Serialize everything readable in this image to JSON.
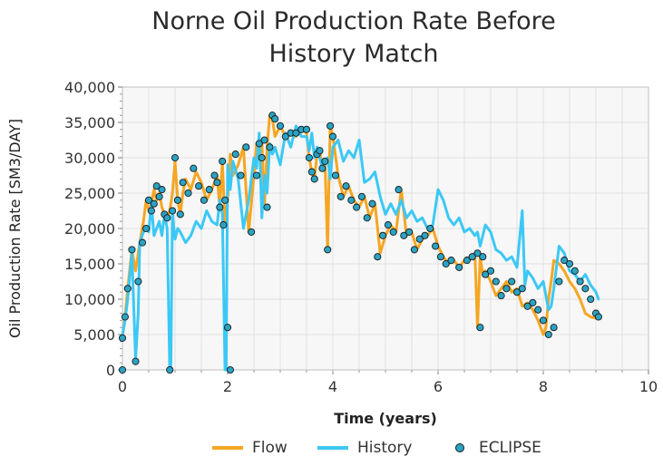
{
  "chart_data": {
    "type": "line",
    "title": [
      "Norne Oil Production Rate Before",
      "History Match"
    ],
    "xlabel": "Time (years)",
    "ylabel": "Oil Production Rate [SM3/DAY]",
    "xlim": [
      0,
      10
    ],
    "ylim": [
      0,
      40000
    ],
    "xticks": [
      "0",
      "2",
      "4",
      "6",
      "8",
      "10"
    ],
    "yticks": [
      "0",
      "5,000",
      "10,000",
      "15,000",
      "20,000",
      "25,000",
      "30,000",
      "35,000",
      "40,000"
    ],
    "grid": true,
    "legend_position": "bottom",
    "colors": {
      "Flow": "#f5a623",
      "History": "#3cc8f5",
      "ECLIPSE": "#2aa3c4",
      "grid": "#d9d9d9"
    },
    "series": [
      {
        "name": "Flow",
        "type": "line",
        "x": [
          0,
          0.05,
          0.1,
          0.18,
          0.25,
          0.33,
          0.4,
          0.45,
          0.5,
          0.55,
          0.6,
          0.65,
          0.7,
          0.75,
          0.8,
          0.85,
          0.9,
          0.95,
          1.0,
          1.05,
          1.1,
          1.15,
          1.2,
          1.3,
          1.4,
          1.5,
          1.6,
          1.7,
          1.8,
          1.85,
          1.9,
          1.95,
          2.0,
          2.05,
          2.1,
          2.2,
          2.3,
          2.4,
          2.5,
          2.55,
          2.6,
          2.65,
          2.7,
          2.75,
          2.8,
          2.85,
          2.9,
          3.0,
          3.1,
          3.2,
          3.3,
          3.4,
          3.5,
          3.55,
          3.6,
          3.65,
          3.7,
          3.75,
          3.8,
          3.85,
          3.9,
          3.95,
          4.0,
          4.1,
          4.2,
          4.3,
          4.4,
          4.5,
          4.6,
          4.7,
          4.8,
          4.9,
          5.0,
          5.1,
          5.2,
          5.3,
          5.4,
          5.5,
          5.6,
          5.7,
          5.8,
          5.9,
          6.0,
          6.1,
          6.2,
          6.3,
          6.4,
          6.5,
          6.6,
          6.7,
          6.75,
          6.8,
          6.85,
          6.9,
          7.0,
          7.1,
          7.2,
          7.3,
          7.4,
          7.5,
          7.6,
          7.7,
          7.8,
          7.9,
          8.0,
          8.05,
          8.1,
          8.15,
          8.2,
          8.3,
          8.4,
          8.5,
          8.6,
          8.7,
          8.8,
          8.9,
          9.0,
          9.05
        ],
        "y": [
          4500,
          7500,
          11500,
          17000,
          14000,
          18000,
          21000,
          24000,
          22500,
          23500,
          25500,
          24000,
          25000,
          23000,
          22000,
          21500,
          22500,
          25000,
          29500,
          24000,
          22000,
          25000,
          27000,
          25500,
          28000,
          26500,
          24000,
          25500,
          27500,
          23000,
          29500,
          20500,
          24000,
          30500,
          27500,
          29000,
          31500,
          19500,
          27500,
          32000,
          30000,
          32500,
          23000,
          31500,
          36000,
          35500,
          33000,
          34500,
          33000,
          33500,
          33000,
          34000,
          33500,
          30000,
          28000,
          27000,
          30500,
          31000,
          28500,
          29500,
          17000,
          34500,
          33000,
          27500,
          24500,
          26000,
          24000,
          23000,
          24500,
          21500,
          23500,
          16500,
          19000,
          20500,
          19500,
          25500,
          19000,
          19500,
          17000,
          18500,
          19000,
          20000,
          17500,
          16000,
          15000,
          15500,
          14500,
          15500,
          16000,
          16500,
          6000,
          16000,
          13500,
          14000,
          12500,
          10500,
          11500,
          12500,
          11000,
          11500,
          9000,
          9500,
          8500,
          7000,
          5000,
          6000,
          10000,
          12500,
          15500,
          15000,
          14000,
          12500,
          11500,
          10000,
          8000,
          7500,
          7300,
          7200
        ]
      },
      {
        "name": "History",
        "type": "line",
        "x": [
          0,
          0.05,
          0.1,
          0.18,
          0.25,
          0.3,
          0.33,
          0.4,
          0.45,
          0.5,
          0.55,
          0.6,
          0.65,
          0.7,
          0.75,
          0.8,
          0.85,
          0.9,
          0.92,
          0.95,
          0.97,
          1.0,
          1.05,
          1.1,
          1.2,
          1.3,
          1.4,
          1.5,
          1.6,
          1.7,
          1.8,
          1.85,
          1.9,
          1.95,
          1.97,
          2.0,
          2.03,
          2.05,
          2.1,
          2.2,
          2.3,
          2.4,
          2.5,
          2.55,
          2.6,
          2.65,
          2.7,
          2.75,
          2.8,
          2.85,
          2.9,
          3.0,
          3.1,
          3.2,
          3.3,
          3.4,
          3.5,
          3.55,
          3.6,
          3.65,
          3.7,
          3.8,
          3.9,
          3.95,
          4.0,
          4.1,
          4.2,
          4.3,
          4.4,
          4.5,
          4.6,
          4.7,
          4.8,
          4.9,
          5.0,
          5.1,
          5.2,
          5.3,
          5.4,
          5.5,
          5.6,
          5.7,
          5.8,
          5.9,
          6.0,
          6.1,
          6.2,
          6.3,
          6.4,
          6.5,
          6.6,
          6.7,
          6.75,
          6.8,
          6.85,
          6.9,
          7.0,
          7.1,
          7.2,
          7.3,
          7.4,
          7.5,
          7.6,
          7.65,
          7.7,
          7.8,
          7.9,
          8.0,
          8.1,
          8.15,
          8.2,
          8.3,
          8.4,
          8.5,
          8.6,
          8.7,
          8.8,
          8.9,
          9.0,
          9.05
        ],
        "y": [
          5000,
          7000,
          10000,
          16500,
          1500,
          8000,
          18000,
          19500,
          20000,
          19500,
          23500,
          19000,
          20000,
          21000,
          19000,
          22000,
          20000,
          0,
          0,
          22500,
          20500,
          18500,
          20000,
          19500,
          18000,
          19000,
          21000,
          20000,
          22500,
          21000,
          20500,
          24000,
          22000,
          0,
          0,
          29000,
          27000,
          25500,
          29500,
          27000,
          20000,
          24000,
          30000,
          28500,
          33500,
          21500,
          27500,
          25000,
          32000,
          30500,
          31500,
          29000,
          33500,
          31500,
          34500,
          33000,
          33000,
          31000,
          33500,
          30000,
          31500,
          28500,
          30000,
          27000,
          31500,
          32500,
          29500,
          31000,
          30000,
          32500,
          26500,
          27000,
          28000,
          24500,
          22000,
          23500,
          22000,
          24000,
          21500,
          22500,
          21000,
          21500,
          20000,
          20500,
          25500,
          24000,
          21500,
          20500,
          21500,
          19500,
          20000,
          19000,
          19500,
          17500,
          19000,
          20500,
          19500,
          17000,
          16500,
          15500,
          16000,
          14500,
          22500,
          12000,
          14000,
          13000,
          11500,
          12500,
          8500,
          9000,
          11500,
          17500,
          16500,
          14000,
          13500,
          12500,
          13500,
          12000,
          11000,
          10000
        ]
      },
      {
        "name": "ECLIPSE",
        "type": "scatter",
        "x": [
          0.0,
          0.0,
          0.05,
          0.1,
          0.18,
          0.25,
          0.3,
          0.38,
          0.45,
          0.5,
          0.55,
          0.6,
          0.65,
          0.7,
          0.75,
          0.8,
          0.85,
          0.9,
          0.95,
          1.0,
          1.05,
          1.1,
          1.15,
          1.25,
          1.35,
          1.45,
          1.55,
          1.65,
          1.75,
          1.8,
          1.85,
          1.9,
          1.92,
          1.95,
          2.0,
          2.05,
          2.15,
          2.25,
          2.35,
          2.45,
          2.55,
          2.6,
          2.65,
          2.7,
          2.75,
          2.8,
          2.85,
          2.9,
          3.0,
          3.1,
          3.2,
          3.3,
          3.4,
          3.5,
          3.55,
          3.6,
          3.65,
          3.7,
          3.75,
          3.8,
          3.85,
          3.9,
          3.95,
          4.0,
          4.05,
          4.15,
          4.25,
          4.35,
          4.45,
          4.55,
          4.65,
          4.75,
          4.85,
          4.95,
          5.05,
          5.15,
          5.25,
          5.35,
          5.45,
          5.55,
          5.65,
          5.75,
          5.85,
          5.95,
          6.05,
          6.15,
          6.25,
          6.4,
          6.55,
          6.65,
          6.75,
          6.8,
          6.85,
          6.9,
          7.0,
          7.1,
          7.2,
          7.3,
          7.4,
          7.5,
          7.6,
          7.7,
          7.8,
          7.9,
          8.0,
          8.1,
          8.2,
          8.3,
          8.4,
          8.5,
          8.6,
          8.7,
          8.8,
          8.9,
          9.0,
          9.05
        ],
        "y": [
          0,
          4500,
          7500,
          11500,
          17000,
          1200,
          12500,
          18000,
          20000,
          24000,
          22500,
          23500,
          26000,
          24500,
          25500,
          22000,
          21500,
          0,
          22500,
          30000,
          24000,
          22000,
          26500,
          25000,
          28500,
          26000,
          24000,
          25500,
          27500,
          26500,
          23000,
          29500,
          20500,
          24000,
          6000,
          0,
          30500,
          27500,
          31500,
          19500,
          27500,
          32000,
          30000,
          32500,
          23000,
          31500,
          36000,
          35500,
          34500,
          33000,
          33500,
          33500,
          34000,
          34000,
          30000,
          28000,
          27000,
          30500,
          31000,
          28500,
          29500,
          17000,
          34500,
          33000,
          27500,
          24500,
          26000,
          24000,
          23000,
          24500,
          21500,
          23500,
          16000,
          19000,
          20500,
          19500,
          25500,
          19000,
          19500,
          17000,
          18500,
          19000,
          20000,
          17500,
          16000,
          15000,
          15500,
          14500,
          15500,
          16000,
          16500,
          6000,
          16000,
          13500,
          14000,
          12500,
          10500,
          11500,
          12500,
          11000,
          11500,
          9000,
          9500,
          8500,
          7000,
          5000,
          6000,
          12500,
          15500,
          15000,
          14000,
          12500,
          11500,
          10000,
          8000,
          7500
        ]
      }
    ]
  },
  "legend": [
    {
      "label": "Flow",
      "kind": "line"
    },
    {
      "label": "History",
      "kind": "line"
    },
    {
      "label": "ECLIPSE",
      "kind": "marker"
    }
  ]
}
